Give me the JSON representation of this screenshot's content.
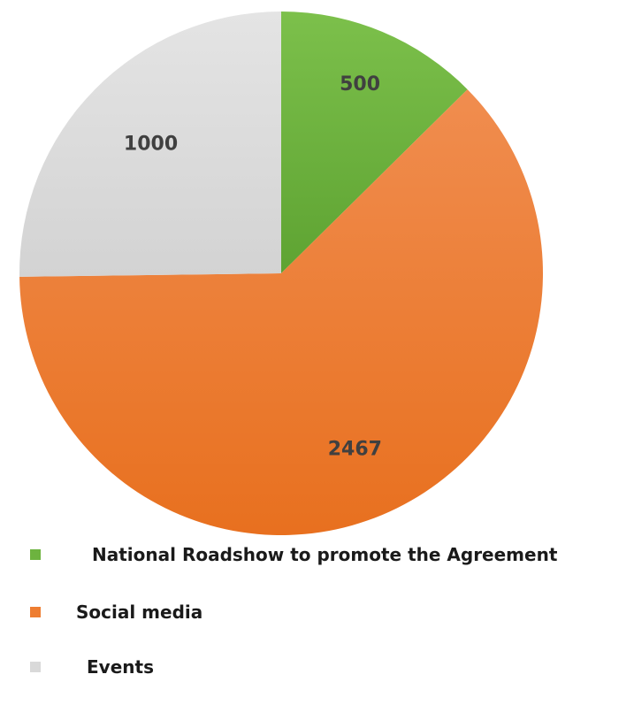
{
  "chart_data": {
    "type": "pie",
    "title": "",
    "start_angle": "12 o'clock, clockwise",
    "slices": [
      {
        "name": "National Roadshow to promote the Agreement",
        "value": 500,
        "label": "500",
        "color": "#6db33f"
      },
      {
        "name": "Social media",
        "value": 2467,
        "label": "2467",
        "color": "#ee7d31"
      },
      {
        "name": "Events",
        "value": 1000,
        "label": "1000",
        "color": "#d9d9d9"
      }
    ],
    "legend_placement": "bottom-left"
  },
  "legend": {
    "items": [
      {
        "label": "National Roadshow to promote the Agreement",
        "color": "#6db33f"
      },
      {
        "label": "Social media",
        "color": "#ee7d31"
      },
      {
        "label": "Events",
        "color": "#d9d9d9"
      }
    ]
  }
}
